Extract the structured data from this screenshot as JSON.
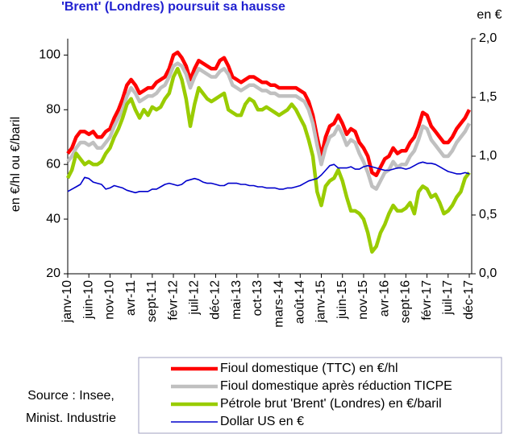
{
  "chart_data": {
    "type": "line",
    "title": "'Brent' (Londres) poursuit sa hausse",
    "y_label": "en €/hl ou €/baril",
    "y2_label": "en €",
    "annotations": [
      "Source : Insee,",
      "Minist. Industrie"
    ],
    "categories": [
      "janv-10",
      null,
      null,
      null,
      null,
      "juin-10",
      null,
      null,
      null,
      null,
      "nov-10",
      null,
      null,
      null,
      null,
      "avr-11",
      null,
      null,
      null,
      null,
      "sept-11",
      null,
      null,
      null,
      null,
      "févr-12",
      null,
      null,
      null,
      null,
      "juil-12",
      null,
      null,
      null,
      null,
      "déc-12",
      null,
      null,
      null,
      null,
      "mai-13",
      null,
      null,
      null,
      null,
      "oct-13",
      null,
      null,
      null,
      null,
      "mars-14",
      null,
      null,
      null,
      null,
      "août-14",
      null,
      null,
      null,
      null,
      "janv-15",
      null,
      null,
      null,
      null,
      "juin-15",
      null,
      null,
      null,
      null,
      "nov-15",
      null,
      null,
      null,
      null,
      "avr-16",
      null,
      null,
      null,
      null,
      "sept-16",
      null,
      null,
      null,
      null,
      "févr-17",
      null,
      null,
      null,
      null,
      "juil-17",
      null,
      null,
      null,
      null,
      "déc-17"
    ],
    "ylim": [
      20,
      106
    ],
    "yticks": [
      20,
      40,
      60,
      80,
      100
    ],
    "y2lim": [
      0,
      2
    ],
    "y2ticks": [
      {
        "value": 0,
        "label": "0,0"
      },
      {
        "value": 0.5,
        "label": "0,5"
      },
      {
        "value": 1,
        "label": "1,0"
      },
      {
        "value": 1.5,
        "label": "1,5"
      },
      {
        "value": 2,
        "label": "2,0"
      }
    ],
    "grid": false,
    "series": [
      {
        "name": "Fioul domestique (TTC) en €/hl",
        "color": "#ff0000",
        "line_width": 4.5,
        "values": [
          64,
          66,
          70,
          72,
          72,
          71,
          72,
          70,
          70,
          72,
          73,
          77,
          80,
          84,
          89,
          91,
          89,
          86,
          87,
          88,
          88,
          90,
          91,
          92,
          95,
          100,
          101,
          99,
          96,
          91,
          95,
          98,
          97,
          96,
          95,
          95,
          98,
          99,
          96,
          92,
          91,
          90,
          91,
          92,
          92,
          91,
          90,
          90,
          89,
          89,
          88,
          88,
          88,
          88,
          88,
          87,
          86,
          83,
          78,
          70,
          63,
          70,
          74,
          75,
          78,
          75,
          71,
          73,
          72,
          68,
          66,
          63,
          57,
          56,
          59,
          62,
          63,
          66,
          64,
          65,
          65,
          68,
          70,
          74,
          79,
          78,
          74,
          72,
          70,
          68,
          68,
          70,
          73,
          75,
          77,
          80
        ]
      },
      {
        "name": "Fioul domestique après réduction TICPE",
        "color": "#c0c0c0",
        "line_width": 4.5,
        "values": [
          61,
          63,
          66,
          68,
          68,
          67,
          68,
          66,
          66,
          68,
          70,
          74,
          77,
          80,
          85,
          88,
          86,
          83,
          84,
          85,
          85,
          86,
          88,
          89,
          92,
          96,
          97,
          96,
          93,
          88,
          92,
          95,
          94,
          93,
          92,
          92,
          94,
          95,
          93,
          89,
          88,
          87,
          88,
          89,
          89,
          88,
          87,
          87,
          86,
          86,
          85,
          85,
          85,
          85,
          85,
          84,
          83,
          80,
          75,
          67,
          60,
          66,
          70,
          71,
          74,
          71,
          67,
          69,
          68,
          64,
          61,
          57,
          52,
          51,
          54,
          57,
          58,
          61,
          59,
          60,
          60,
          63,
          65,
          69,
          74,
          73,
          69,
          67,
          65,
          63,
          63,
          65,
          68,
          70,
          72,
          75
        ]
      },
      {
        "name": "Pétrole brut 'Brent' (Londres) en €/baril",
        "color": "#99cc00",
        "line_width": 4.5,
        "values": [
          55,
          58,
          64,
          62,
          60,
          61,
          60,
          60,
          61,
          64,
          66,
          70,
          73,
          77,
          82,
          84,
          80,
          77,
          80,
          78,
          81,
          80,
          81,
          84,
          86,
          92,
          95,
          91,
          84,
          74,
          82,
          88,
          86,
          84,
          83,
          84,
          85,
          86,
          80,
          79,
          78,
          78,
          82,
          84,
          83,
          80,
          80,
          81,
          80,
          79,
          78,
          79,
          80,
          82,
          80,
          77,
          74,
          69,
          63,
          50,
          45,
          52,
          54,
          55,
          58,
          54,
          48,
          43,
          43,
          42,
          40,
          35,
          28,
          30,
          35,
          38,
          42,
          45,
          43,
          43,
          44,
          46,
          42,
          50,
          52,
          51,
          48,
          49,
          46,
          42,
          43,
          45,
          48,
          50,
          55,
          57
        ]
      },
      {
        "name": "Dollar US en €",
        "color": "#0000cc",
        "line_width": 1.6,
        "axis": "y2",
        "values": [
          0.7,
          0.72,
          0.74,
          0.76,
          0.82,
          0.81,
          0.78,
          0.77,
          0.76,
          0.72,
          0.73,
          0.75,
          0.74,
          0.73,
          0.71,
          0.7,
          0.69,
          0.7,
          0.7,
          0.7,
          0.72,
          0.72,
          0.74,
          0.76,
          0.77,
          0.76,
          0.75,
          0.76,
          0.79,
          0.8,
          0.81,
          0.8,
          0.78,
          0.77,
          0.77,
          0.76,
          0.75,
          0.75,
          0.77,
          0.77,
          0.77,
          0.76,
          0.76,
          0.75,
          0.75,
          0.74,
          0.74,
          0.73,
          0.73,
          0.73,
          0.72,
          0.72,
          0.73,
          0.73,
          0.74,
          0.75,
          0.77,
          0.79,
          0.8,
          0.81,
          0.84,
          0.88,
          0.92,
          0.93,
          0.9,
          0.9,
          0.9,
          0.91,
          0.89,
          0.89,
          0.91,
          0.92,
          0.91,
          0.9,
          0.89,
          0.88,
          0.88,
          0.89,
          0.9,
          0.9,
          0.89,
          0.9,
          0.92,
          0.94,
          0.95,
          0.94,
          0.94,
          0.93,
          0.91,
          0.89,
          0.87,
          0.86,
          0.85,
          0.85,
          0.86,
          0.85
        ]
      }
    ]
  }
}
